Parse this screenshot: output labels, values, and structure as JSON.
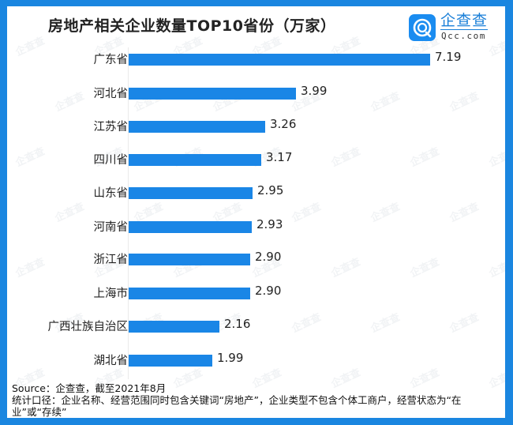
{
  "title": "房地产相关企业数量TOP10省份（万家）",
  "logo": {
    "icon": "qcc-logo-icon",
    "name_cn": "企查查",
    "name_en": "Qcc.com"
  },
  "watermark_text": "企查查",
  "colors": {
    "frame": "#1a86e0",
    "bar": "#1a86e6",
    "background": "#ffffff",
    "text": "#222222"
  },
  "chart_data": {
    "type": "bar",
    "orientation": "horizontal",
    "title": "房地产相关企业数量TOP10省份（万家）",
    "xlabel": "",
    "ylabel": "",
    "unit": "万家",
    "categories": [
      "广东省",
      "河北省",
      "江苏省",
      "四川省",
      "山东省",
      "河南省",
      "浙江省",
      "上海市",
      "广西壮族自治区",
      "湖北省"
    ],
    "values": [
      7.19,
      3.99,
      3.26,
      3.17,
      2.95,
      2.93,
      2.9,
      2.9,
      2.16,
      1.99
    ],
    "value_labels": [
      "7.19",
      "3.99",
      "3.26",
      "3.17",
      "2.95",
      "2.93",
      "2.90",
      "2.90",
      "2.16",
      "1.99"
    ],
    "xlim": [
      0,
      7.19
    ],
    "grid": false,
    "legend": null,
    "data_labels": true
  },
  "footer": {
    "source": "Source：企查查，截至2021年8月",
    "note": "统计口径：企业名称、经营范围同时包含关键词“房地产”，企业类型不包含个体工商户，经营状态为“在业”或“存续”"
  }
}
